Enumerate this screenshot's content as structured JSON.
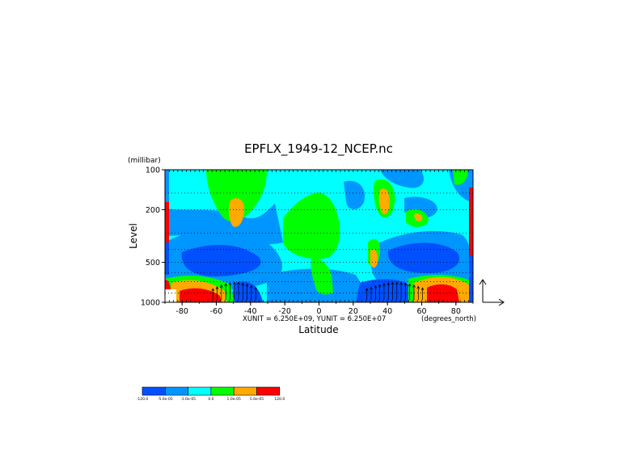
{
  "chart_data": {
    "type": "heatmap",
    "title": "EPFLX_1949-12_NCEP.nc",
    "xlabel": "Latitude",
    "x_units": "(degrees_north)",
    "ylabel": "Level",
    "y_units": "(millibar)",
    "y_scale": "log",
    "xlim": [
      -90,
      90
    ],
    "ylim": [
      1000,
      100
    ],
    "x_ticks": [
      -80,
      -60,
      -40,
      -20,
      0,
      20,
      40,
      60,
      80
    ],
    "y_ticks": [
      100,
      200,
      500,
      1000
    ],
    "vector_units": "XUNIT = 6.250E+09, YUNIT = 6.250E+07",
    "grid": true,
    "colorbar": {
      "levels": [
        "-120.0",
        "-5.0e-05",
        "-1.0e-05",
        "0.0",
        "1.0e-05",
        "5.0e-05",
        "120.0"
      ],
      "colors": [
        "#0050ff",
        "#0096ff",
        "#00ffff",
        "#00ff00",
        "#ffaa00",
        "#ff0000"
      ]
    }
  }
}
